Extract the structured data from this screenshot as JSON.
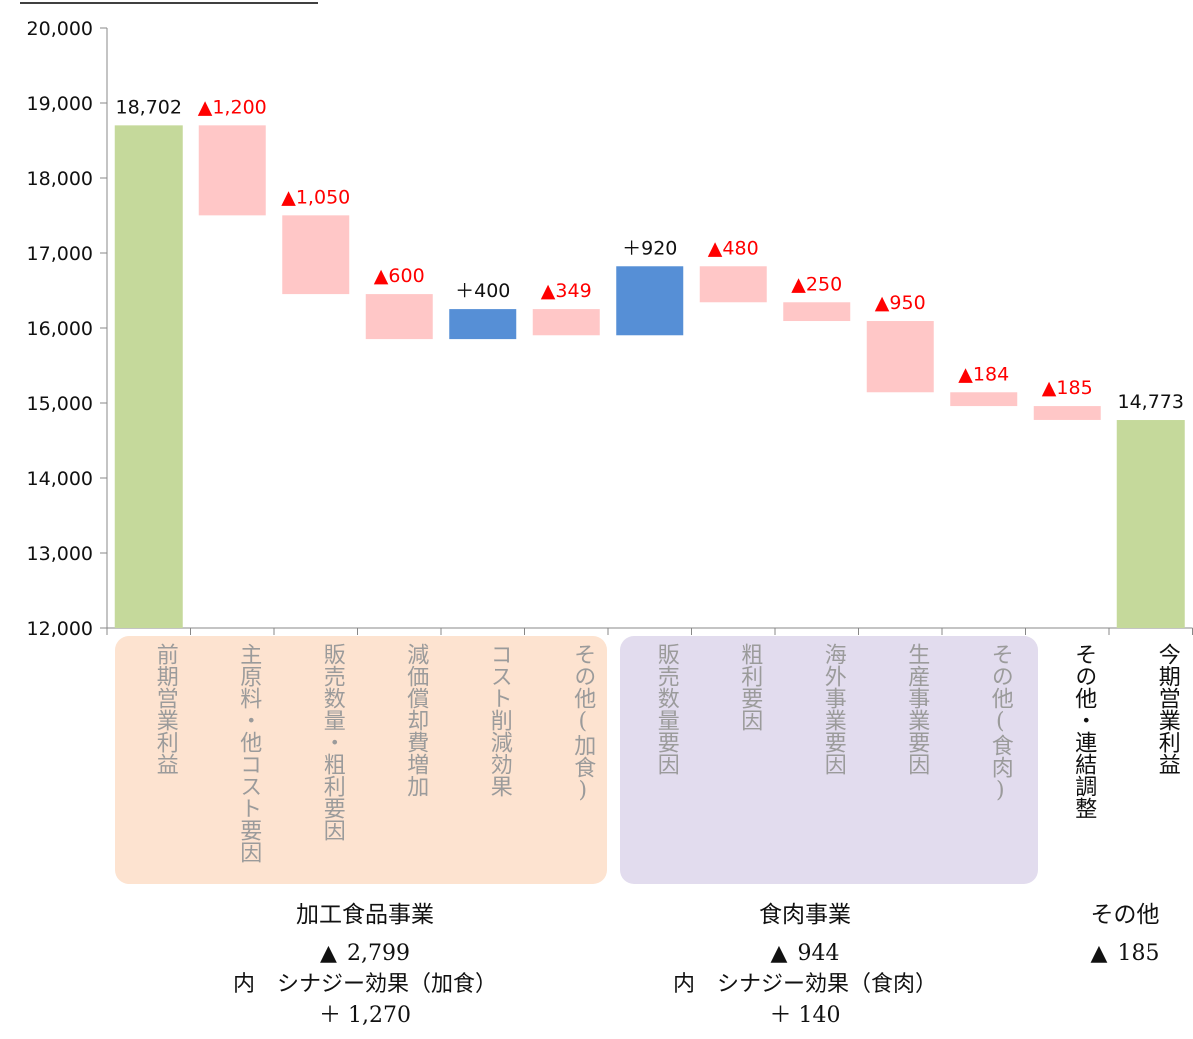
{
  "chart_data": {
    "type": "waterfall",
    "ylim": [
      12000,
      20000
    ],
    "yticks": [
      "12,000",
      "13,000",
      "14,000",
      "15,000",
      "16,000",
      "17,000",
      "18,000",
      "19,000",
      "20,000"
    ],
    "grid": false,
    "colors": {
      "total": "#c5d99b",
      "decrease": "#ffc7c7",
      "increase": "#568fd6",
      "decrease_label": "#ff0000",
      "increase_label": "#111111"
    },
    "steps": [
      {
        "category": "前期営業利益",
        "kind": "total",
        "value": 18702,
        "label": "18,702"
      },
      {
        "category": "主原料・他コスト要因",
        "kind": "decrease",
        "value": -1200,
        "label": "1,200"
      },
      {
        "category": "販売数量・粗利要因",
        "kind": "decrease",
        "value": -1050,
        "label": "1,050"
      },
      {
        "category": "減価償却費増加",
        "kind": "decrease",
        "value": -600,
        "label": "600"
      },
      {
        "category": "コスト削減効果",
        "kind": "increase",
        "value": 400,
        "label": "＋400"
      },
      {
        "category": "その他(加食)",
        "kind": "decrease",
        "value": -349,
        "label": "349"
      },
      {
        "category": "販売数量要因",
        "kind": "increase",
        "value": 920,
        "label": "＋920"
      },
      {
        "category": "粗利要因",
        "kind": "decrease",
        "value": -480,
        "label": "480"
      },
      {
        "category": "海外事業要因",
        "kind": "decrease",
        "value": -250,
        "label": "250"
      },
      {
        "category": "生産事業要因",
        "kind": "decrease",
        "value": -950,
        "label": "950"
      },
      {
        "category": "その他(食肉)",
        "kind": "decrease",
        "value": -184,
        "label": "184"
      },
      {
        "category": "その他・連結調整",
        "kind": "decrease",
        "value": -185,
        "label": "185"
      },
      {
        "category": "今期営業利益",
        "kind": "total",
        "value": 14773,
        "label": "14,773"
      }
    ],
    "decrease_marker": "▲"
  },
  "groups": [
    {
      "name": "加工食品事業",
      "total": "2,799",
      "synergy_label": "内　シナジー効果（加食）",
      "synergy": "＋ 1,270",
      "color": "#fde3d0"
    },
    {
      "name": "食肉事業",
      "total": "944",
      "synergy_label": "内　シナジー効果（食肉）",
      "synergy": "＋ 140",
      "color": "#e2dcee"
    },
    {
      "name": "その他",
      "total": "185"
    }
  ],
  "marker": "▲"
}
